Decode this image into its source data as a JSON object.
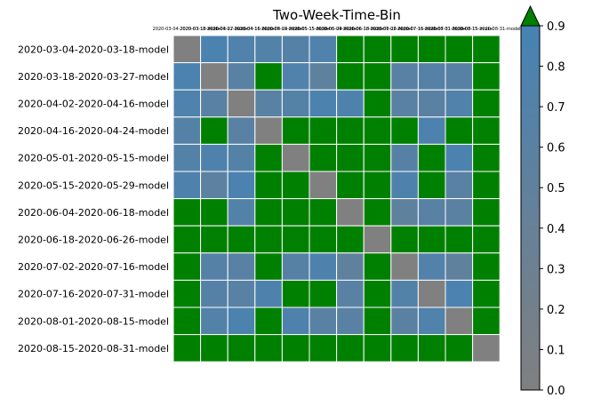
{
  "chart_data": {
    "type": "heatmap",
    "title": "Two-Week-Time-Bin",
    "xlabel": "",
    "ylabel": "",
    "row_labels": [
      "2020-03-04-2020-03-18-model",
      "2020-03-18-2020-03-27-model",
      "2020-04-02-2020-04-16-model",
      "2020-04-16-2020-04-24-model",
      "2020-05-01-2020-05-15-model",
      "2020-05-15-2020-05-29-model",
      "2020-06-04-2020-06-18-model",
      "2020-06-18-2020-06-26-model",
      "2020-07-02-2020-07-16-model",
      "2020-07-16-2020-07-31-model",
      "2020-08-01-2020-08-15-model",
      "2020-08-15-2020-08-31-model"
    ],
    "column_labels": [
      "2020-03-04-2020-03-18-model",
      "2020-03-18-2020-03-27-model",
      "2020-04-02-2020-04-16-model",
      "2020-04-16-2020-04-24-model",
      "2020-05-01-2020-05-15-model",
      "2020-05-15-2020-05-29-model",
      "2020-06-04-2020-06-18-model",
      "2020-06-18-2020-06-26-model",
      "2020-07-02-2020-07-16-model",
      "2020-07-16-2020-07-31-model",
      "2020-08-01-2020-08-15-model",
      "2020-08-15-2020-08-31-model"
    ],
    "values": [
      [
        0.0,
        0.82,
        0.75,
        0.7,
        0.65,
        0.74,
        1.0,
        1.0,
        1.0,
        1.0,
        1.0,
        1.0
      ],
      [
        0.8,
        0.0,
        0.62,
        1.0,
        0.74,
        0.52,
        1.0,
        1.0,
        0.6,
        0.65,
        0.63,
        1.0
      ],
      [
        0.76,
        0.6,
        0.0,
        0.61,
        0.68,
        0.8,
        0.78,
        1.0,
        0.61,
        0.58,
        0.75,
        1.0
      ],
      [
        0.65,
        1.0,
        0.62,
        0.0,
        1.0,
        1.0,
        1.0,
        1.0,
        1.0,
        0.79,
        1.0,
        1.0
      ],
      [
        0.7,
        0.78,
        0.68,
        1.0,
        0.0,
        1.0,
        1.0,
        1.0,
        0.63,
        1.0,
        0.8,
        1.0
      ],
      [
        0.78,
        0.55,
        0.82,
        1.0,
        1.0,
        0.0,
        1.0,
        1.0,
        0.78,
        1.0,
        0.6,
        1.0
      ],
      [
        1.0,
        1.0,
        0.7,
        1.0,
        1.0,
        1.0,
        0.0,
        1.0,
        0.52,
        0.6,
        0.58,
        1.0
      ],
      [
        1.0,
        1.0,
        1.0,
        1.0,
        1.0,
        1.0,
        1.0,
        0.0,
        1.0,
        1.0,
        1.0,
        1.0
      ],
      [
        1.0,
        0.65,
        0.6,
        1.0,
        0.63,
        0.78,
        0.5,
        1.0,
        0.0,
        0.72,
        0.5,
        1.0
      ],
      [
        1.0,
        0.66,
        0.6,
        0.78,
        1.0,
        1.0,
        0.62,
        1.0,
        0.7,
        0.0,
        0.82,
        1.0
      ],
      [
        1.0,
        0.7,
        0.8,
        1.0,
        0.78,
        0.6,
        0.6,
        1.0,
        0.58,
        0.75,
        0.0,
        1.0
      ],
      [
        1.0,
        1.0,
        1.0,
        1.0,
        1.0,
        1.0,
        1.0,
        1.0,
        1.0,
        1.0,
        1.0,
        0.0
      ]
    ],
    "colorbar": {
      "range": [
        0.0,
        0.9
      ],
      "ticks": [
        "0.0",
        "0.1",
        "0.2",
        "0.3",
        "0.4",
        "0.5",
        "0.6",
        "0.7",
        "0.8",
        "0.9"
      ],
      "extend": "max",
      "over_color": "#008000",
      "low_color": "#808080",
      "high_color": "#4682b4"
    },
    "grid": true,
    "cell_edge_color": "#ffffff"
  }
}
